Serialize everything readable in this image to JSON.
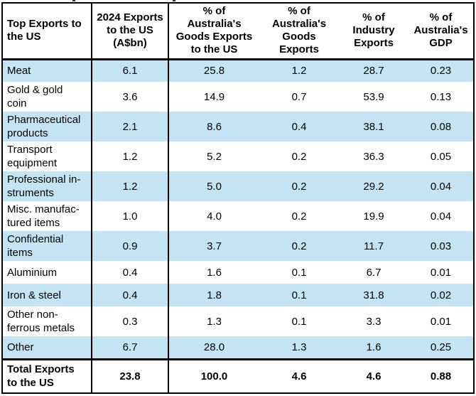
{
  "table": {
    "header": [
      "Top Exports to\nthe US",
      "2024 Exports\nto the US\n(A$bn)",
      "% of\nAustralia's\nGoods Exports\nto the US",
      "% of\nAustralia's\nGoods\nExports",
      "% of\nIndustry\nExports",
      "% of\nAustralia's\nGDP"
    ],
    "rows": [
      {
        "label": "Meat",
        "values": [
          "6.1",
          "25.8",
          "1.2",
          "28.7",
          "0.23"
        ],
        "shaded": true,
        "lines": 1
      },
      {
        "label": "Gold & gold\ncoin",
        "values": [
          "3.6",
          "14.9",
          "0.7",
          "53.9",
          "0.13"
        ],
        "shaded": false,
        "lines": 2
      },
      {
        "label": "Pharmaceutical\nproducts",
        "values": [
          "2.1",
          "8.6",
          "0.4",
          "38.1",
          "0.08"
        ],
        "shaded": true,
        "lines": 2
      },
      {
        "label": "Transport\nequipment",
        "values": [
          "1.2",
          "5.2",
          "0.2",
          "36.3",
          "0.05"
        ],
        "shaded": false,
        "lines": 2
      },
      {
        "label": "Professional in-\nstruments",
        "values": [
          "1.2",
          "5.0",
          "0.2",
          "29.2",
          "0.04"
        ],
        "shaded": true,
        "lines": 2
      },
      {
        "label": "Misc. manufac-\ntured items",
        "values": [
          "1.0",
          "4.0",
          "0.2",
          "19.9",
          "0.04"
        ],
        "shaded": false,
        "lines": 2
      },
      {
        "label": "Confidential\nitems",
        "values": [
          "0.9",
          "3.7",
          "0.2",
          "11.7",
          "0.03"
        ],
        "shaded": true,
        "lines": 2
      },
      {
        "label": "Aluminium",
        "values": [
          "0.4",
          "1.6",
          "0.1",
          "6.7",
          "0.01"
        ],
        "shaded": false,
        "lines": 1
      },
      {
        "label": "Iron & steel",
        "values": [
          "0.4",
          "1.8",
          "0.1",
          "31.8",
          "0.02"
        ],
        "shaded": true,
        "lines": 1
      },
      {
        "label": "Other non-\nferrous metals",
        "values": [
          "0.3",
          "1.3",
          "0.1",
          "3.3",
          "0.01"
        ],
        "shaded": false,
        "lines": 2
      },
      {
        "label": "Other",
        "values": [
          "6.7",
          "28.0",
          "1.3",
          "1.6",
          "0.25"
        ],
        "shaded": true,
        "lines": 1
      }
    ],
    "total_row": {
      "label": "Total Exports\nto the US",
      "values": [
        "23.8",
        "100.0",
        "4.6",
        "4.6",
        "0.88"
      ]
    }
  },
  "colors": {
    "shaded_row": "#C4E4F4",
    "border": "#000000",
    "text": "#000000",
    "background": "#FFFFFF"
  }
}
